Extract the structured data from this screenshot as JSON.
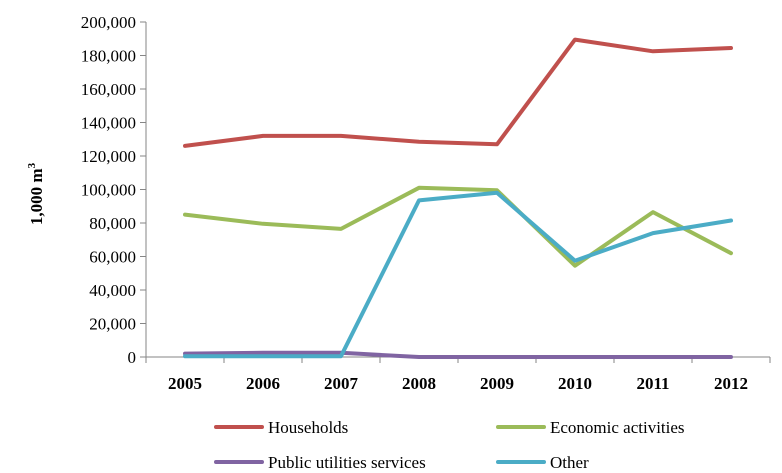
{
  "chart_data": {
    "type": "line",
    "title": "",
    "xlabel": "",
    "ylabel": "1,000 m",
    "ylabel_superscript": "3",
    "x": [
      "2005",
      "2006",
      "2007",
      "2008",
      "2009",
      "2010",
      "2011",
      "2012"
    ],
    "ylim": [
      0,
      200000
    ],
    "yticks": [
      "0",
      "20,000",
      "40,000",
      "60,000",
      "80,000",
      "100,000",
      "120,000",
      "140,000",
      "160,000",
      "180,000",
      "200,000"
    ],
    "grid": false,
    "legend_position": "bottom",
    "series": [
      {
        "name": "Households",
        "color": "#c0504d",
        "values": [
          126000,
          132000,
          132000,
          128500,
          127000,
          189500,
          182500,
          184500
        ]
      },
      {
        "name": "Economic activities",
        "color": "#9bbb59",
        "values": [
          85000,
          79500,
          76500,
          101000,
          99500,
          54500,
          86500,
          62000
        ]
      },
      {
        "name": "Public utilities services",
        "color": "#8064a2",
        "values": [
          2000,
          2500,
          2500,
          0,
          0,
          0,
          0,
          0
        ]
      },
      {
        "name": "Other",
        "color": "#4bacc6",
        "values": [
          500,
          500,
          500,
          93500,
          98000,
          57500,
          74000,
          81500
        ]
      }
    ]
  }
}
